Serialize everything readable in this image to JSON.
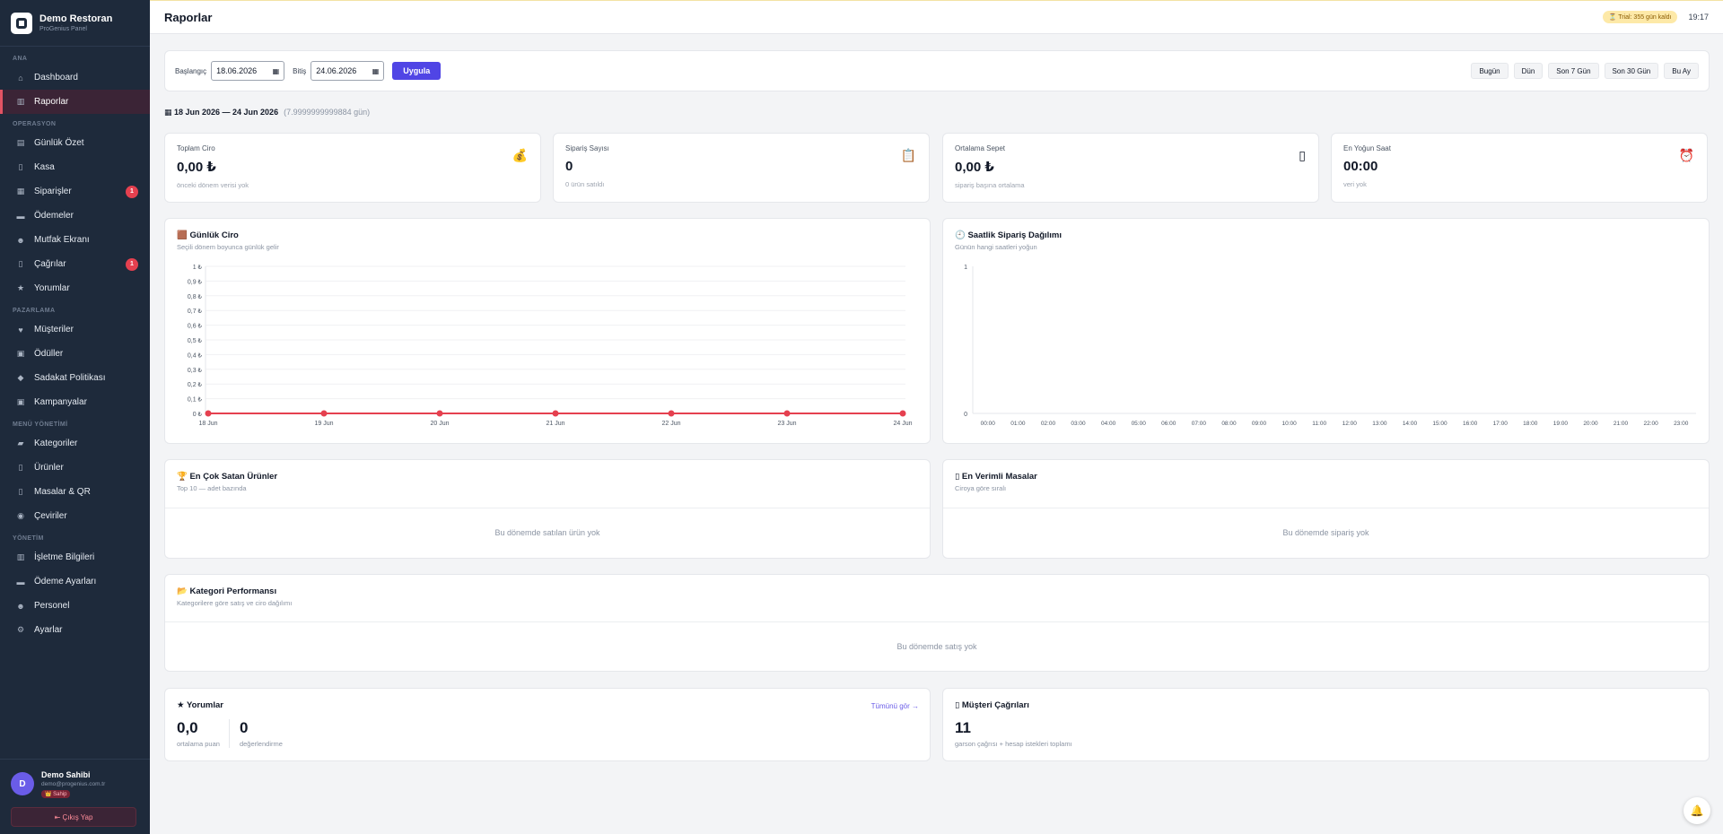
{
  "brand": {
    "name": "Demo Restoran",
    "sub": "ProGenius Panel"
  },
  "sidebar": {
    "sections": [
      {
        "title": "ANA",
        "items": [
          {
            "label": "Dashboard",
            "icon": "home-icon",
            "glyph": "⌂"
          },
          {
            "label": "Raporlar",
            "icon": "chart-icon",
            "glyph": "▥",
            "active": true
          }
        ]
      },
      {
        "title": "OPERASYON",
        "items": [
          {
            "label": "Günlük Özet",
            "icon": "summary-icon",
            "glyph": "▤"
          },
          {
            "label": "Kasa",
            "icon": "register-icon",
            "glyph": "▯"
          },
          {
            "label": "Siparişler",
            "icon": "orders-icon",
            "glyph": "▦",
            "badge": "1"
          },
          {
            "label": "Ödemeler",
            "icon": "card-icon",
            "glyph": "▬"
          },
          {
            "label": "Mutfak Ekranı",
            "icon": "chef-icon",
            "glyph": "☻"
          },
          {
            "label": "Çağrılar",
            "icon": "bell-icon",
            "glyph": "▯",
            "badge": "1"
          },
          {
            "label": "Yorumlar",
            "icon": "star-icon",
            "glyph": "★"
          }
        ]
      },
      {
        "title": "PAZARLAMA",
        "items": [
          {
            "label": "Müşteriler",
            "icon": "heart-icon",
            "glyph": "♥"
          },
          {
            "label": "Ödüller",
            "icon": "gift-icon",
            "glyph": "▣"
          },
          {
            "label": "Sadakat Politikası",
            "icon": "diamond-icon",
            "glyph": "◆"
          },
          {
            "label": "Kampanyalar",
            "icon": "campaign-icon",
            "glyph": "▣"
          }
        ]
      },
      {
        "title": "MENÜ YÖNETİMİ",
        "items": [
          {
            "label": "Kategoriler",
            "icon": "folder-icon",
            "glyph": "▰"
          },
          {
            "label": "Ürünler",
            "icon": "product-icon",
            "glyph": "▯"
          },
          {
            "label": "Masalar & QR",
            "icon": "qr-icon",
            "glyph": "▯"
          },
          {
            "label": "Çeviriler",
            "icon": "globe-icon",
            "glyph": "◉"
          }
        ]
      },
      {
        "title": "YÖNETİM",
        "items": [
          {
            "label": "İşletme Bilgileri",
            "icon": "building-icon",
            "glyph": "▥"
          },
          {
            "label": "Ödeme Ayarları",
            "icon": "payment-icon",
            "glyph": "▬"
          },
          {
            "label": "Personel",
            "icon": "staff-icon",
            "glyph": "☻"
          },
          {
            "label": "Ayarlar",
            "icon": "gear-icon",
            "glyph": "⚙"
          }
        ]
      }
    ]
  },
  "user": {
    "initial": "D",
    "name": "Demo Sahibi",
    "email": "demo@progenius.com.tr",
    "role": "👑 Sahip",
    "logout": "⇤ Çıkış Yap"
  },
  "topbar": {
    "title": "Raporlar",
    "trial": "⏳ Trial: 355 gün kaldı",
    "time": "19:17"
  },
  "filters": {
    "start_label": "Başlangıç",
    "start_value": "18.06.2026",
    "end_label": "Bitiş",
    "end_value": "24.06.2026",
    "apply": "Uygula",
    "presets": [
      "Bugün",
      "Dün",
      "Son 7 Gün",
      "Son 30 Gün",
      "Bu Ay"
    ]
  },
  "range": {
    "text": "▦ 18 Jun 2026 — 24 Jun 2026",
    "days": "(7.9999999999884 gün)"
  },
  "kpis": [
    {
      "label": "Toplam Ciro",
      "value": "0,00 ₺",
      "sub": "önceki dönem verisi yok",
      "icon": "money-bag-icon",
      "glyph": "💰",
      "color": "#2e9e4a"
    },
    {
      "label": "Sipariş Sayısı",
      "value": "0",
      "sub": "0 ürün satıldı",
      "icon": "clipboard-icon",
      "glyph": "📋",
      "color": "#c58a3a"
    },
    {
      "label": "Ortalama Sepet",
      "value": "0,00 ₺",
      "sub": "sipariş başına ortalama",
      "icon": "phone-icon",
      "glyph": "▯",
      "color": "#111827"
    },
    {
      "label": "En Yoğun Saat",
      "value": "00:00",
      "sub": "veri yok",
      "icon": "alarm-icon",
      "glyph": "⏰",
      "color": "#374151"
    }
  ],
  "daily": {
    "title": "🟫 Günlük Ciro",
    "sub": "Seçili dönem boyunca günlük gelir",
    "chart_data": {
      "type": "line",
      "categories": [
        "18 Jun",
        "19 Jun",
        "20 Jun",
        "21 Jun",
        "22 Jun",
        "23 Jun",
        "24 Jun"
      ],
      "values": [
        0,
        0,
        0,
        0,
        0,
        0,
        0
      ],
      "ylim": [
        0,
        1
      ],
      "yticks": [
        "0 ₺",
        "0,1 ₺",
        "0,2 ₺",
        "0,3 ₺",
        "0,4 ₺",
        "0,5 ₺",
        "0,6 ₺",
        "0,7 ₺",
        "0,8 ₺",
        "0,9 ₺",
        "1 ₺"
      ],
      "color": "#e5404f",
      "grid": true
    }
  },
  "hourly": {
    "title": "🕘 Saatlik Sipariş Dağılımı",
    "sub": "Günün hangi saatleri yoğun",
    "chart_data": {
      "type": "bar",
      "categories": [
        "00:00",
        "01:00",
        "02:00",
        "03:00",
        "04:00",
        "05:00",
        "06:00",
        "07:00",
        "08:00",
        "09:00",
        "10:00",
        "11:00",
        "12:00",
        "13:00",
        "14:00",
        "15:00",
        "16:00",
        "17:00",
        "18:00",
        "19:00",
        "20:00",
        "21:00",
        "22:00",
        "23:00"
      ],
      "values": [
        0,
        0,
        0,
        0,
        0,
        0,
        0,
        0,
        0,
        0,
        0,
        0,
        0,
        0,
        0,
        0,
        0,
        0,
        0,
        0,
        0,
        0,
        0,
        0
      ],
      "ylim": [
        0,
        1
      ],
      "yticks": [
        "0",
        "1"
      ],
      "grid": false
    }
  },
  "top_products": {
    "title": "🏆 En Çok Satan Ürünler",
    "sub": "Top 10 — adet bazında",
    "empty": "Bu dönemde satılan ürün yok"
  },
  "top_tables": {
    "title": "▯ En Verimli Masalar",
    "sub": "Ciroya göre sıralı",
    "empty": "Bu dönemde sipariş yok"
  },
  "categories": {
    "title": "📂 Kategori Performansı",
    "sub": "Kategorilere göre satış ve ciro dağılımı",
    "empty": "Bu dönemde satış yok"
  },
  "reviews": {
    "title": "★ Yorumlar",
    "link": "Tümünü gör →",
    "avg": "0,0",
    "avg_label": "ortalama puan",
    "count": "0",
    "count_label": "değerlendirme"
  },
  "calls": {
    "title": "▯ Müşteri Çağrıları",
    "count": "11",
    "label": "garson çağrısı + hesap istekleri toplamı"
  }
}
